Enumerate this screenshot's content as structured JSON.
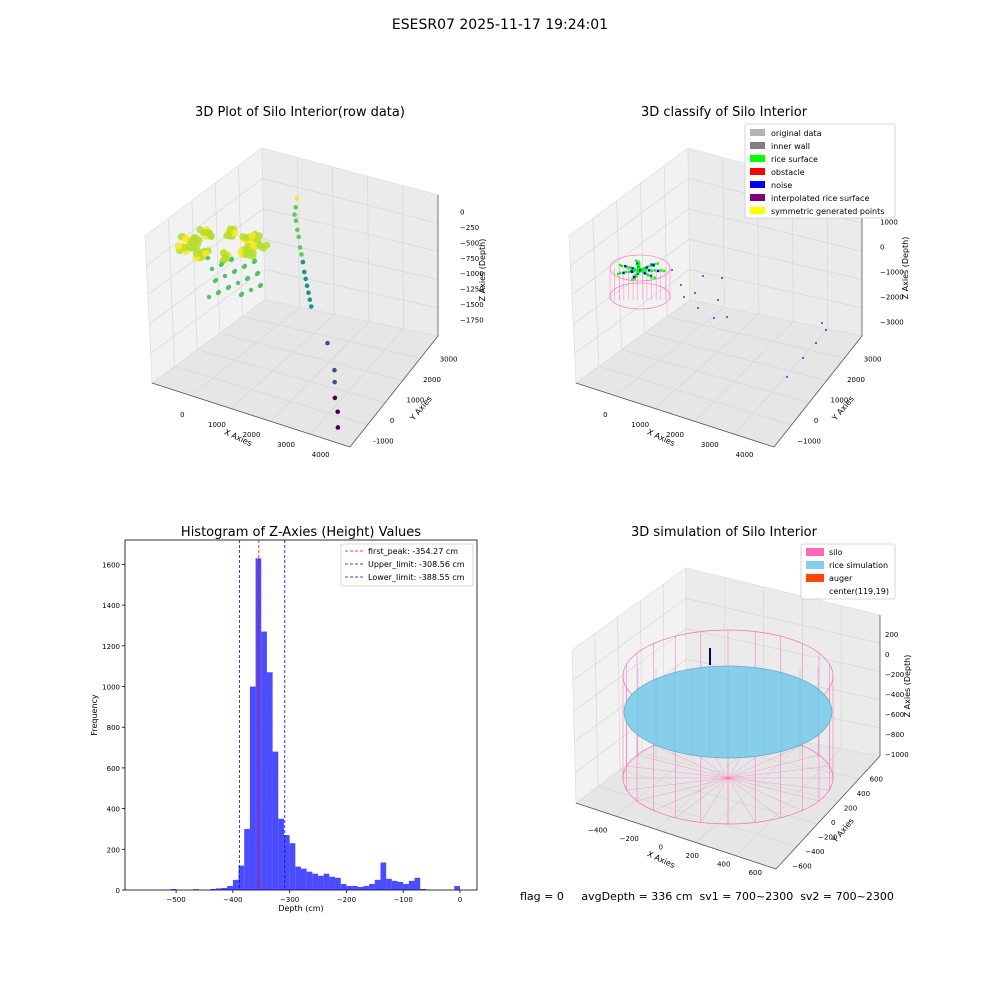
{
  "suptitle": "ESESR07 2025-11-17 19:24:01",
  "status_line": "flag = 0     avgDepth = 336 cm  sv1 = 700~2300  sv2 = 700~2300",
  "chart_data": [
    {
      "type": "scatter3d",
      "title": "3D Plot of Silo Interior(row data)",
      "xlabel": "X Axies",
      "ylabel": "Y Axies",
      "zlabel": "Z Axies (Depth)",
      "xticks": [
        "0",
        "1000",
        "2000",
        "3000",
        "4000"
      ],
      "yticks": [
        "3000",
        "2000",
        "1000",
        "0",
        "-1000"
      ],
      "zticks": [
        "0",
        "−250",
        "−500",
        "−750",
        "−1000",
        "−1250",
        "−1500",
        "−1750"
      ],
      "xlim": [
        -700,
        4300
      ],
      "ylim": [
        -1100,
        3300
      ],
      "zlim": [
        -1900,
        100
      ],
      "grid": true,
      "points": [
        {
          "x": 300,
          "y": 3000,
          "z": -300
        },
        {
          "x": 400,
          "y": 2800,
          "z": -350
        },
        {
          "x": 500,
          "y": 2600,
          "z": -380
        },
        {
          "x": 600,
          "y": 2500,
          "z": -420
        },
        {
          "x": 700,
          "y": 2400,
          "z": -500
        },
        {
          "x": 800,
          "y": 2300,
          "z": -550
        },
        {
          "x": 900,
          "y": 2200,
          "z": -650
        },
        {
          "x": 1000,
          "y": 2100,
          "z": -700
        },
        {
          "x": 1100,
          "y": 2000,
          "z": -760
        },
        {
          "x": 1200,
          "y": 1900,
          "z": -850
        },
        {
          "x": 1300,
          "y": 1800,
          "z": -900
        },
        {
          "x": 1400,
          "y": 1700,
          "z": -950
        },
        {
          "x": 1500,
          "y": 1600,
          "z": -1000
        },
        {
          "x": 1600,
          "y": 1500,
          "z": -1050
        },
        {
          "x": 1700,
          "y": 1400,
          "z": -1100
        },
        {
          "x": 2500,
          "y": 800,
          "z": -1300
        },
        {
          "x": 3000,
          "y": 300,
          "z": -1450
        },
        {
          "x": 3200,
          "y": 0,
          "z": -1500
        },
        {
          "x": 3400,
          "y": -300,
          "z": -1600
        },
        {
          "x": 3600,
          "y": -500,
          "z": -1700
        },
        {
          "x": 3800,
          "y": -800,
          "z": -1800
        }
      ],
      "colormap": [
        "#440154",
        "#3b528b",
        "#21918c",
        "#5ec962",
        "#fde725"
      ]
    },
    {
      "type": "scatter3d",
      "title": "3D classify of Silo Interior",
      "xlabel": "X Axies",
      "ylabel": "Y Axies",
      "zlabel": "Z Axies (Depth)",
      "xticks": [
        "0",
        "1000",
        "2000",
        "3000",
        "4000"
      ],
      "yticks": [
        "3000",
        "2000",
        "1000",
        "0",
        "−1000"
      ],
      "zticks": [
        "1000",
        "0",
        "−1000",
        "−2000",
        "−3000"
      ],
      "grid": true,
      "legend": {
        "placement": "upper-right",
        "items": [
          {
            "label": "original data",
            "color": "#b3b3b3"
          },
          {
            "label": "inner wall",
            "color": "#808080"
          },
          {
            "label": "rice surface",
            "color": "#00ff00"
          },
          {
            "label": "obstacle",
            "color": "#ff0000"
          },
          {
            "label": "noise",
            "color": "#0000ff"
          },
          {
            "label": "interpolated rice surface",
            "color": "#800080"
          },
          {
            "label": "symmetric generated points",
            "color": "#ffff00"
          }
        ]
      }
    },
    {
      "type": "bar",
      "title": "Histogram of Z-Axies (Height) Values",
      "xlabel": "Depth (cm)",
      "ylabel": "Frequency",
      "xlim": [
        -590,
        30
      ],
      "ylim": [
        0,
        1720
      ],
      "xticks": [
        -500,
        -400,
        -300,
        -200,
        -100,
        0
      ],
      "xtick_labels": [
        "−500",
        "−400",
        "−300",
        "−200",
        "−100",
        "0"
      ],
      "yticks": [
        0,
        200,
        400,
        600,
        800,
        1000,
        1200,
        1400,
        1600
      ],
      "bar_color": "#0000ff",
      "bins": [
        {
          "x0": -510,
          "x1": -500,
          "v": 5
        },
        {
          "x0": -470,
          "x1": -460,
          "v": 4
        },
        {
          "x0": -440,
          "x1": -430,
          "v": 5
        },
        {
          "x0": -430,
          "x1": -420,
          "v": 8
        },
        {
          "x0": -420,
          "x1": -410,
          "v": 10
        },
        {
          "x0": -410,
          "x1": -400,
          "v": 20
        },
        {
          "x0": -400,
          "x1": -390,
          "v": 50
        },
        {
          "x0": -390,
          "x1": -380,
          "v": 120
        },
        {
          "x0": -380,
          "x1": -370,
          "v": 300
        },
        {
          "x0": -370,
          "x1": -360,
          "v": 1000
        },
        {
          "x0": -360,
          "x1": -350,
          "v": 1630
        },
        {
          "x0": -350,
          "x1": -340,
          "v": 1270
        },
        {
          "x0": -340,
          "x1": -330,
          "v": 1070
        },
        {
          "x0": -330,
          "x1": -320,
          "v": 680
        },
        {
          "x0": -320,
          "x1": -310,
          "v": 350
        },
        {
          "x0": -310,
          "x1": -300,
          "v": 270
        },
        {
          "x0": -300,
          "x1": -290,
          "v": 230
        },
        {
          "x0": -290,
          "x1": -280,
          "v": 115
        },
        {
          "x0": -280,
          "x1": -270,
          "v": 105
        },
        {
          "x0": -270,
          "x1": -260,
          "v": 90
        },
        {
          "x0": -260,
          "x1": -250,
          "v": 80
        },
        {
          "x0": -250,
          "x1": -240,
          "v": 70
        },
        {
          "x0": -240,
          "x1": -230,
          "v": 80
        },
        {
          "x0": -230,
          "x1": -220,
          "v": 65
        },
        {
          "x0": -220,
          "x1": -210,
          "v": 60
        },
        {
          "x0": -210,
          "x1": -200,
          "v": 30
        },
        {
          "x0": -200,
          "x1": -190,
          "v": 20
        },
        {
          "x0": -190,
          "x1": -180,
          "v": 20
        },
        {
          "x0": -180,
          "x1": -170,
          "v": 15
        },
        {
          "x0": -170,
          "x1": -160,
          "v": 20
        },
        {
          "x0": -160,
          "x1": -150,
          "v": 30
        },
        {
          "x0": -150,
          "x1": -140,
          "v": 50
        },
        {
          "x0": -140,
          "x1": -130,
          "v": 135
        },
        {
          "x0": -130,
          "x1": -120,
          "v": 55
        },
        {
          "x0": -120,
          "x1": -110,
          "v": 45
        },
        {
          "x0": -110,
          "x1": -100,
          "v": 40
        },
        {
          "x0": -100,
          "x1": -90,
          "v": 30
        },
        {
          "x0": -90,
          "x1": -80,
          "v": 45
        },
        {
          "x0": -80,
          "x1": -70,
          "v": 60
        },
        {
          "x0": -70,
          "x1": -60,
          "v": 5
        },
        {
          "x0": -10,
          "x1": 0,
          "v": 20
        }
      ],
      "vlines": [
        {
          "x": -354.27,
          "color": "#ff0000",
          "label": "first_peak: -354.27 cm"
        },
        {
          "x": -308.56,
          "color": "#0000ff",
          "label": "Upper_limit: -308.56 cm"
        },
        {
          "x": -388.55,
          "color": "#0000ff",
          "label": "Lower_limit: -388.55 cm"
        }
      ],
      "legend": {
        "placement": "upper-right"
      }
    },
    {
      "type": "surface3d",
      "title": "3D simulation of Silo Interior",
      "xlabel": "X Axies",
      "ylabel": "Y Axies",
      "zlabel": "Z Axies (Depth)",
      "xticks": [
        "−400",
        "−200",
        "0",
        "200",
        "400",
        "600"
      ],
      "yticks": [
        "600",
        "400",
        "200",
        "0",
        "−200",
        "−400",
        "−600"
      ],
      "zticks": [
        "200",
        "0",
        "−200",
        "−400",
        "−600",
        "−800",
        "−1000"
      ],
      "grid": true,
      "legend": {
        "placement": "upper-right",
        "items": [
          {
            "label": "silo",
            "color": "#ff69b4"
          },
          {
            "label": "rice simulation",
            "color": "#87ceeb"
          },
          {
            "label": "auger",
            "color": "#ff4500"
          },
          {
            "label": "center(119,19)",
            "color": "#ffffff"
          }
        ]
      }
    }
  ]
}
